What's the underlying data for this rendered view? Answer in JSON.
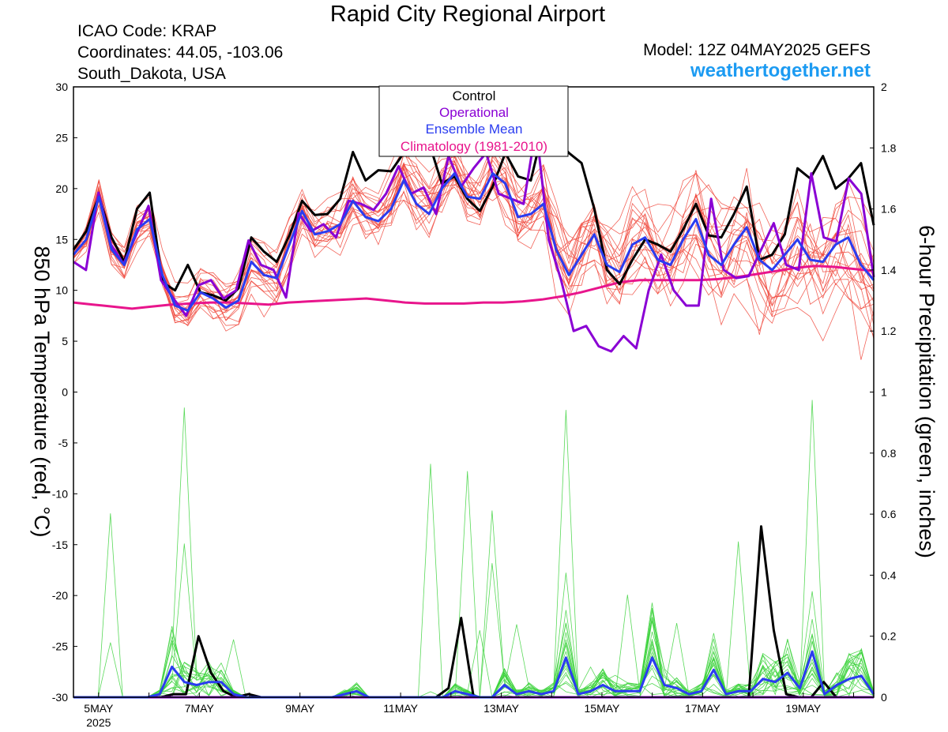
{
  "header": {
    "title": "Rapid City Regional Airport",
    "icao": "ICAO Code: KRAP",
    "coordinates": "Coordinates: 44.05, -103.06",
    "region": "South_Dakota, USA",
    "model": "Model: 12Z 04MAY2025 GEFS",
    "site": "weathertogether.net"
  },
  "chart_data": {
    "type": "line",
    "ylabel_left": "850 hPa Temperature (red, °C)",
    "ylabel_right": "6-hour Precipitation (green, inches)",
    "ylim_left": [
      -30,
      30
    ],
    "ylim_right": [
      0,
      2
    ],
    "yticks_left": [
      "30",
      "25",
      "20",
      "15",
      "10",
      "5",
      "0",
      "-5",
      "-10",
      "-15",
      "-20",
      "-25",
      "-30"
    ],
    "yticks_right": [
      "2",
      "1.8",
      "1.6",
      "1.4",
      "1.2",
      "1",
      "0.8",
      "0.6",
      "0.4",
      "0.2",
      "0"
    ],
    "x_start_day": 4.5,
    "x_end_day": 20.4,
    "xticks": [
      {
        "day": 5,
        "label": "5MAY",
        "sub": "2025"
      },
      {
        "day": 7,
        "label": "7MAY"
      },
      {
        "day": 9,
        "label": "9MAY"
      },
      {
        "day": 11,
        "label": "11MAY"
      },
      {
        "day": 13,
        "label": "13MAY"
      },
      {
        "day": 15,
        "label": "15MAY"
      },
      {
        "day": 17,
        "label": "17MAY"
      },
      {
        "day": 19,
        "label": "19MAY"
      }
    ],
    "legend": {
      "placement": "top-center",
      "entries": [
        {
          "label": "Control",
          "color": "#000000"
        },
        {
          "label": "Operational",
          "color": "#8a00d4"
        },
        {
          "label": "Ensemble Mean",
          "color": "#2a3cf0"
        },
        {
          "label": "Climatology (1981-2010)",
          "color": "#e8158c"
        }
      ]
    },
    "colors": {
      "members_temp": "#f0483c",
      "members_precip": "#3cd23c",
      "control": "#000000",
      "operational": "#8a00d4",
      "mean": "#2a3cf0",
      "climatology": "#e8158c"
    },
    "series": [
      {
        "name": "Control",
        "axis": "left",
        "color": "#000000",
        "values": [
          14.0,
          15.8,
          19.3,
          15.2,
          12.8,
          18.0,
          19.6,
          10.8,
          10.0,
          12.5,
          9.8,
          9.5,
          9.0,
          10.2,
          15.2,
          13.8,
          12.8,
          15.4,
          18.8,
          17.4,
          17.5,
          19.0,
          23.6,
          20.8,
          21.8,
          21.7,
          23.5,
          24.0,
          24.5,
          20.5,
          21.2,
          19.0,
          17.8,
          20.2,
          23.5,
          21.2,
          20.8,
          26.0,
          25.0,
          23.5,
          22.5,
          18.0,
          12.0,
          10.6,
          13.0,
          15.0,
          14.5,
          13.8,
          16.0,
          18.5,
          15.4,
          15.2,
          17.5,
          20.2,
          13.0,
          13.5,
          15.5,
          22.0,
          21.0,
          23.2,
          20.0,
          21.0,
          22.5,
          16.4
        ]
      },
      {
        "name": "Operational",
        "axis": "left",
        "color": "#8a00d4",
        "values": [
          12.8,
          12.0,
          19.6,
          14.5,
          12.6,
          15.4,
          18.3,
          11.0,
          9.2,
          7.5,
          10.5,
          11.0,
          9.2,
          10.0,
          14.9,
          12.5,
          12.0,
          9.3,
          17.6,
          15.8,
          16.5,
          15.2,
          18.8,
          18.5,
          17.9,
          19.5,
          22.2,
          19.5,
          20.1,
          17.5,
          23.2,
          20.2,
          22.0,
          23.5,
          19.5,
          19.0,
          18.5,
          26.0,
          15.0,
          11.0,
          6.0,
          6.5,
          4.5,
          4.0,
          5.5,
          4.3,
          10.0,
          13.5,
          10.0,
          8.5,
          8.5,
          19.0,
          12.0,
          11.2,
          11.4,
          14.0,
          16.6,
          12.5,
          12.0,
          21.5,
          15.2,
          14.8,
          21.0,
          19.5,
          11.3
        ]
      },
      {
        "name": "Ensemble Mean",
        "axis": "left",
        "color": "#2a3cf0",
        "values": [
          13.5,
          15.0,
          19.2,
          14.0,
          12.5,
          16.0,
          17.0,
          11.5,
          8.5,
          8.0,
          9.8,
          9.2,
          8.3,
          9.0,
          12.8,
          11.5,
          11.2,
          14.5,
          17.8,
          15.5,
          15.8,
          16.5,
          18.8,
          17.2,
          16.8,
          18.0,
          20.8,
          18.5,
          17.5,
          20.0,
          21.5,
          19.2,
          19.0,
          21.5,
          20.5,
          17.2,
          17.5,
          18.5,
          14.0,
          11.5,
          13.5,
          15.5,
          12.5,
          11.8,
          14.5,
          15.2,
          13.0,
          12.5,
          15.0,
          17.0,
          13.5,
          12.5,
          14.5,
          16.2,
          13.0,
          12.0,
          13.5,
          15.0,
          13.0,
          12.8,
          14.5,
          15.2,
          12.5,
          11.0
        ]
      },
      {
        "name": "Climatology (1981-2010)",
        "axis": "left",
        "color": "#e8158c",
        "values": [
          8.8,
          8.6,
          8.4,
          8.2,
          8.4,
          8.6,
          8.7,
          8.8,
          8.8,
          8.7,
          8.6,
          8.8,
          8.9,
          9.0,
          9.1,
          9.2,
          9.0,
          8.8,
          8.7,
          8.7,
          8.7,
          8.8,
          8.8,
          8.9,
          9.1,
          9.4,
          9.8,
          10.3,
          10.8,
          11.0,
          11.0,
          11.0,
          11.0,
          11.1,
          11.3,
          11.6,
          11.9,
          12.2,
          12.4,
          12.3,
          12.1,
          11.9
        ]
      },
      {
        "name": "Control",
        "axis": "right",
        "color": "#000000",
        "values": [
          0,
          0,
          0,
          0,
          0,
          0,
          0,
          0,
          0.01,
          0.01,
          0.2,
          0.08,
          0.02,
          0,
          0.01,
          0,
          0,
          0,
          0,
          0,
          0,
          0,
          0,
          0,
          0,
          0,
          0,
          0,
          0,
          0,
          0.03,
          0.26,
          0,
          0,
          0,
          0,
          0,
          0,
          0,
          0,
          0,
          0,
          0,
          0,
          0,
          0,
          0,
          0,
          0,
          0,
          0,
          0,
          0,
          0,
          0,
          0.56,
          0.22,
          0.01,
          0,
          0,
          0.05,
          0,
          0,
          0,
          0
        ]
      },
      {
        "name": "Operational",
        "axis": "right",
        "color": "#8a00d4",
        "values": [
          0,
          0,
          0,
          0,
          0,
          0,
          0,
          0,
          0,
          0,
          0,
          0,
          0,
          0,
          0,
          0,
          0,
          0,
          0,
          0,
          0,
          0,
          0,
          0,
          0,
          0,
          0,
          0,
          0,
          0,
          0,
          0,
          0,
          0,
          0,
          0,
          0,
          0,
          0,
          0,
          0,
          0,
          0,
          0,
          0,
          0,
          0,
          0,
          0,
          0,
          0,
          0,
          0,
          0,
          0,
          0,
          0,
          0,
          0,
          0,
          0,
          0,
          0,
          0,
          0
        ]
      },
      {
        "name": "Ensemble Mean",
        "axis": "right",
        "color": "#2a3cf0",
        "values": [
          0,
          0,
          0,
          0,
          0,
          0,
          0,
          0.01,
          0.1,
          0.05,
          0.04,
          0.05,
          0.05,
          0.01,
          0,
          0,
          0,
          0,
          0,
          0,
          0,
          0,
          0.01,
          0.02,
          0,
          0,
          0,
          0,
          0,
          0,
          0,
          0.02,
          0.01,
          0,
          0,
          0.04,
          0.01,
          0.02,
          0.01,
          0.02,
          0.13,
          0.01,
          0.02,
          0.04,
          0.02,
          0.02,
          0.02,
          0.13,
          0.04,
          0.03,
          0.01,
          0.02,
          0.09,
          0.01,
          0.02,
          0.02,
          0.06,
          0.05,
          0.08,
          0.03,
          0.15,
          0.01,
          0.04,
          0.06,
          0.07,
          0.01
        ]
      }
    ]
  }
}
